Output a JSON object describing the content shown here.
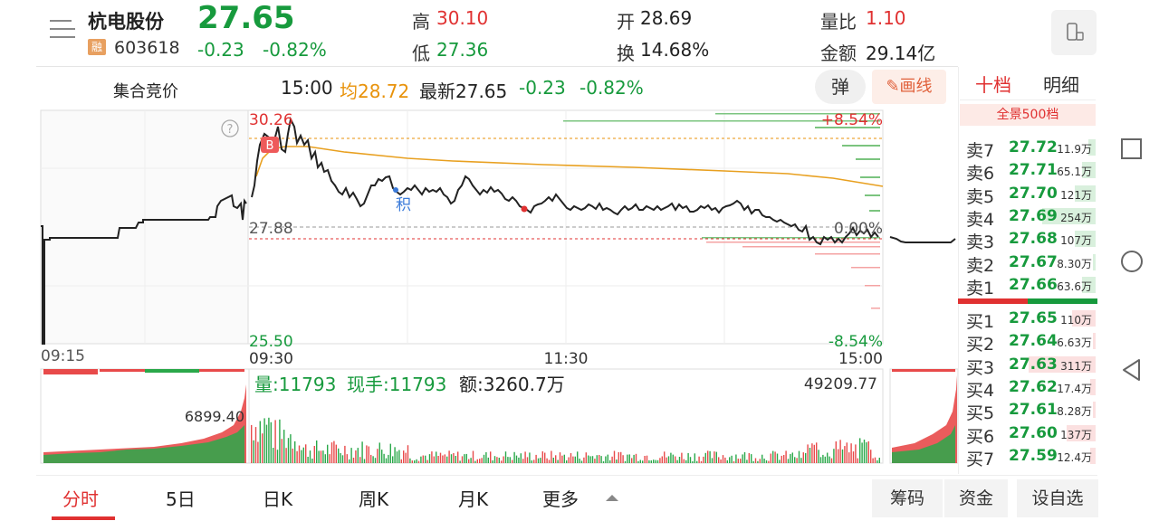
{
  "header": {
    "stock_name": "杭电股份",
    "rong_badge": "融",
    "stock_code": "603618",
    "last_price": "27.65",
    "change_amt": "-0.23",
    "change_pct": "-0.82%",
    "high_label": "高",
    "high_value": "30.10",
    "low_label": "低",
    "low_value": "27.36",
    "open_label": "开",
    "open_value": "28.69",
    "turnover_label": "换",
    "turnover_value": "14.68%",
    "vol_ratio_label": "量比",
    "vol_ratio_value": "1.10",
    "amount_label": "金额",
    "amount_value": "29.14亿"
  },
  "toolbar": {
    "auction_label": "集合竞价",
    "time": "15:00",
    "avg": "均28.72",
    "latest": "最新27.65",
    "change_amt": "-0.23",
    "change_pct": "-0.82%",
    "danmu_label": "弹",
    "draw_label": "画线"
  },
  "chart": {
    "price_high_label": "30.26",
    "price_low_label": "25.50",
    "prev_close_label": "27.88",
    "pct_high_label": "+8.54%",
    "pct_zero_label": "0.00%",
    "pct_low_label": "-8.54%",
    "time_labels": [
      "09:15",
      "09:30",
      "11:30",
      "15:00"
    ],
    "help_icon": "?",
    "buy_marker": "B",
    "ji_marker": "积",
    "auction_vol_label": "6899.40",
    "vol_max_label": "49209.77",
    "volume_info": "量:11793",
    "hand_info": "现手:11793",
    "amount_info": "额:3260.7万"
  },
  "orderbook": {
    "tabs": [
      "十档",
      "明细"
    ],
    "full_label": "全景500档",
    "asks": [
      {
        "label": "卖7",
        "price": "27.72",
        "volume": "11.9万",
        "bar": 0.05
      },
      {
        "label": "卖6",
        "price": "27.71",
        "volume": "65.1万",
        "bar": 0.1
      },
      {
        "label": "卖5",
        "price": "27.70",
        "volume": "121万",
        "bar": 0.15
      },
      {
        "label": "卖4",
        "price": "27.69",
        "volume": "254万",
        "bar": 0.38
      },
      {
        "label": "卖3",
        "price": "27.68",
        "volume": "107万",
        "bar": 0.15
      },
      {
        "label": "卖2",
        "price": "27.67",
        "volume": "8.30万",
        "bar": 0.02
      },
      {
        "label": "卖1",
        "price": "27.66",
        "volume": "63.6万",
        "bar": 0.1
      }
    ],
    "bids": [
      {
        "label": "买1",
        "price": "27.65",
        "volume": "110万",
        "bar": 0.17
      },
      {
        "label": "买2",
        "price": "27.64",
        "volume": "6.63万",
        "bar": 0.02
      },
      {
        "label": "买3",
        "price": "27.63",
        "volume": "311万",
        "bar": 0.48
      },
      {
        "label": "买4",
        "price": "27.62",
        "volume": "17.4万",
        "bar": 0.04
      },
      {
        "label": "买5",
        "price": "27.61",
        "volume": "8.28万",
        "bar": 0.02
      },
      {
        "label": "买6",
        "price": "27.60",
        "volume": "137万",
        "bar": 0.21
      },
      {
        "label": "买7",
        "price": "27.59",
        "volume": "12.4万",
        "bar": 0.04
      }
    ]
  },
  "bottom_tabs": [
    "分时",
    "5日",
    "日K",
    "周K",
    "月K",
    "更多"
  ],
  "bottom_buttons": [
    "筹码",
    "资金",
    "设自选"
  ],
  "colors": {
    "up": "#e03131",
    "down": "#179a3d",
    "avg": "#e8920a"
  }
}
